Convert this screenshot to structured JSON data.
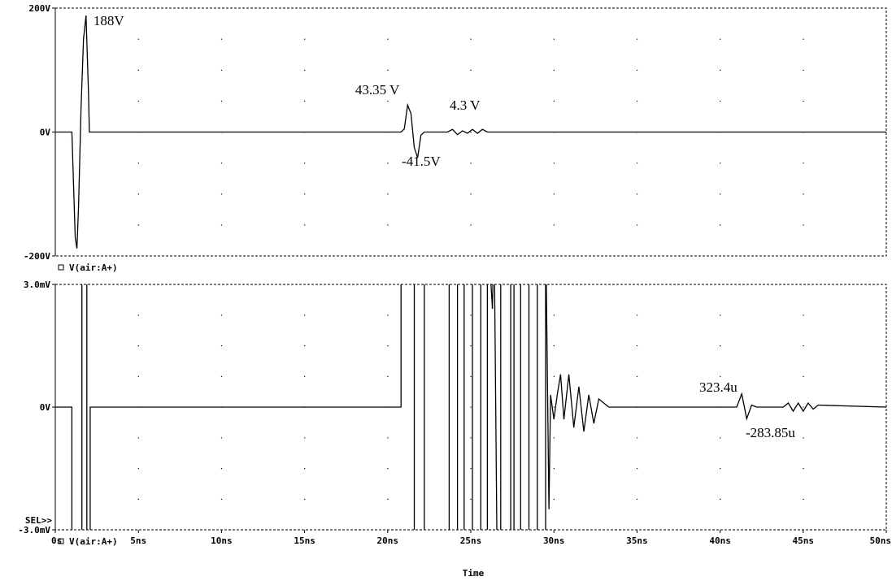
{
  "chart_data": [
    {
      "type": "line",
      "ylim": [
        -200,
        200
      ],
      "x_unit": "ns",
      "yticks": [
        {
          "value": 200,
          "label": "200V"
        },
        {
          "value": 0,
          "label": "0V"
        },
        {
          "value": -200,
          "label": "-200V"
        }
      ],
      "legend": {
        "marker": "square",
        "label": "V(air:A+)",
        "placement": "bottom-left"
      },
      "grid": "dotted",
      "series": [
        {
          "x": [
            0,
            1.0,
            1.2,
            1.3,
            1.4,
            1.55,
            1.7,
            1.85,
            2.0,
            2.05,
            20.8,
            21.0,
            21.2,
            21.4,
            21.6,
            21.8,
            22.0,
            22.2,
            23.6,
            23.9,
            24.2,
            24.5,
            24.8,
            25.1,
            25.4,
            25.7,
            26.0,
            50
          ],
          "y": [
            0,
            0,
            -170,
            -188,
            -120,
            40,
            150,
            188,
            60,
            0,
            0,
            5,
            43.35,
            30,
            -25,
            -41.5,
            -5,
            0,
            0,
            4.3,
            -4.3,
            2.0,
            -2.0,
            4.3,
            -2.0,
            4.3,
            0,
            0
          ]
        }
      ],
      "annotations": [
        {
          "text": "188V",
          "x": 2.0,
          "y": 188
        },
        {
          "text": "43.35 V",
          "x": 21.2,
          "y": 43.35
        },
        {
          "text": "4.3 V",
          "x": 24.4,
          "y": 4.3
        },
        {
          "text": "-41.5V",
          "x": 21.8,
          "y": -41.5
        }
      ]
    },
    {
      "type": "line",
      "ylim": [
        -0.003,
        0.003
      ],
      "x_unit": "ns",
      "xlim": [
        0,
        50
      ],
      "xticks": [
        {
          "value": 0,
          "label": "0s"
        },
        {
          "value": 5,
          "label": "5ns"
        },
        {
          "value": 10,
          "label": "10ns"
        },
        {
          "value": 15,
          "label": "15ns"
        },
        {
          "value": 20,
          "label": "20ns"
        },
        {
          "value": 25,
          "label": "25ns"
        },
        {
          "value": 30,
          "label": "30ns"
        },
        {
          "value": 35,
          "label": "35ns"
        },
        {
          "value": 40,
          "label": "40ns"
        },
        {
          "value": 45,
          "label": "45ns"
        },
        {
          "value": 50,
          "label": "50ns"
        }
      ],
      "yticks": [
        {
          "value": 0.003,
          "label": "3.0mV"
        },
        {
          "value": 0,
          "label": "0V"
        },
        {
          "value": -0.003,
          "label": "-3.0mV"
        }
      ],
      "xlabel": "Time",
      "sel_marker": "SEL>>",
      "legend": {
        "marker": "square",
        "label": "V(air:A+)",
        "placement": "bottom-left"
      },
      "grid": "dotted",
      "series": [
        {
          "x": [
            0,
            1.0,
            1.0,
            1.6,
            1.6,
            1.9,
            1.9,
            2.1,
            2.1,
            20.8,
            20.8,
            21.6,
            21.6,
            22.2,
            22.2,
            23.7,
            23.7,
            24.2,
            24.2,
            24.6,
            24.6,
            25.1,
            25.1,
            25.6,
            25.6,
            26.0,
            26.0,
            26.3,
            26.4,
            26.6,
            26.8,
            26.8,
            27.4,
            27.4,
            27.6,
            27.6,
            28.0,
            28.0,
            28.5,
            28.5,
            29.0,
            29.0,
            29.5,
            29.5,
            29.7,
            29.8,
            30.0,
            30.2,
            30.4,
            30.6,
            30.9,
            31.2,
            31.5,
            31.8,
            32.1,
            32.4,
            32.7,
            33.0,
            33.3,
            35.0,
            41.0,
            41.3,
            41.6,
            41.9,
            42.2,
            43.8,
            44.1,
            44.4,
            44.7,
            45.0,
            45.3,
            45.6,
            45.9,
            50
          ],
          "y": [
            0,
            0,
            -0.0045,
            -0.0045,
            0.0045,
            0.0045,
            -0.0045,
            -0.0045,
            0,
            0,
            0.0045,
            0.0045,
            -0.0045,
            -0.0045,
            0.0045,
            0.0045,
            -0.0045,
            -0.0045,
            0.0045,
            0.0045,
            -0.0045,
            -0.0045,
            0.0045,
            0.0045,
            -0.0045,
            -0.0045,
            0.0045,
            0.0024,
            0.0045,
            -0.0045,
            -0.0045,
            0.0045,
            0.0045,
            -0.0045,
            -0.0045,
            0.0045,
            0.0045,
            -0.0045,
            -0.0045,
            0.0045,
            0.0045,
            -0.0045,
            -0.0045,
            0.0045,
            -0.0025,
            0.0003,
            -0.0003,
            0.0003,
            0.0008,
            -0.0003,
            0.0008,
            -0.0005,
            0.0005,
            -0.0006,
            0.0003,
            -0.0004,
            0.0002,
            0.0001,
            0,
            0,
            0,
            0.0003234,
            -0.00028385,
            5e-05,
            0,
            0,
            0.0001,
            -0.0001,
            0.0001,
            -0.0001,
            0.0001,
            -5e-05,
            5e-05,
            0
          ]
        }
      ],
      "annotations": [
        {
          "text": "323.4u",
          "x": 41.3,
          "y": 0.0003234
        },
        {
          "text": "-283.85u",
          "x": 41.6,
          "y": -0.00028385
        }
      ]
    }
  ]
}
